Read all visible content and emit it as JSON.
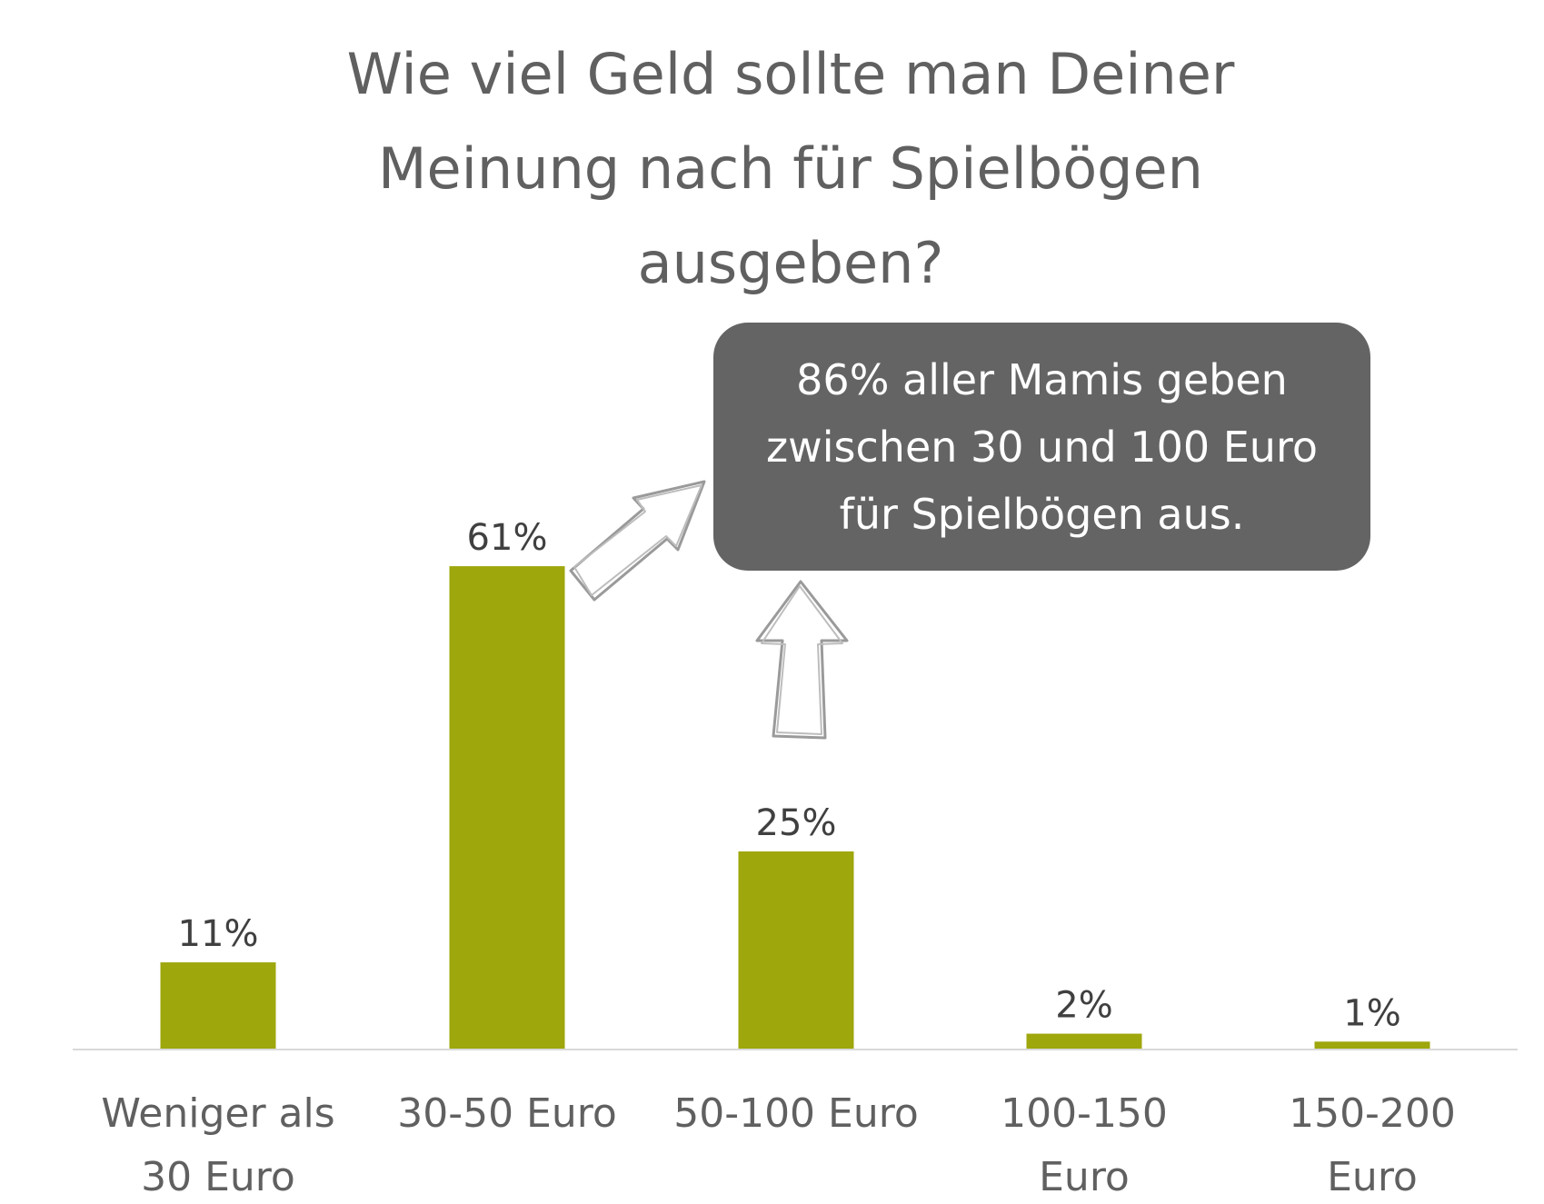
{
  "chart_data": {
    "type": "bar",
    "title": "Wie viel Geld sollte man Deiner Meinung nach für Spielbögen ausgeben?",
    "categories": [
      [
        "Weniger als",
        "30 Euro"
      ],
      [
        "30-50 Euro"
      ],
      [
        "50-100 Euro"
      ],
      [
        "100-150",
        "Euro"
      ],
      [
        "150-200",
        "Euro"
      ]
    ],
    "values": [
      11,
      61,
      25,
      2,
      1
    ],
    "data_labels": [
      "11%",
      "61%",
      "25%",
      "2%",
      "1%"
    ],
    "unit": "%",
    "ylim": [
      0,
      70
    ],
    "grid": false,
    "legend": "none",
    "bar_color": "#9ea70c",
    "callout": "86% aller Mamis geben zwischen 30 und 100 Euro für Spielbögen aus."
  }
}
